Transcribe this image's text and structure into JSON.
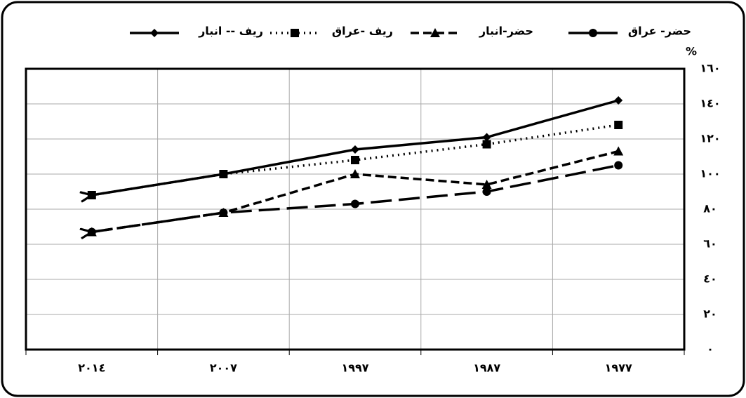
{
  "chart_data": {
    "type": "line",
    "y_label": "%",
    "categories": [
      "٢٠١٤",
      "٢٠٠٧",
      "١٩٩٧",
      "١٩٨٧",
      "١٩٧٧"
    ],
    "series": [
      {
        "name": "حضر- عراق",
        "color": "#000000",
        "marker": "circle",
        "dash": "long",
        "values": [
          67,
          78,
          83,
          90,
          105
        ]
      },
      {
        "name": "حضر-انبار",
        "color": "#000000",
        "marker": "triangle",
        "dash": "short",
        "values": [
          67,
          78,
          100,
          94,
          113
        ]
      },
      {
        "name": "ريف -عراق",
        "color": "#000000",
        "marker": "square",
        "dash": "dotted",
        "values": [
          88,
          100,
          108,
          117,
          128
        ]
      },
      {
        "name": "ريف -- انبار",
        "color": "#000000",
        "marker": "diamond",
        "dash": "solid",
        "values": [
          88,
          100,
          114,
          121,
          142
        ]
      }
    ],
    "ylim": [
      0,
      160
    ],
    "yticks": [
      {
        "value": 0,
        "label": "٠"
      },
      {
        "value": 20,
        "label": "٢٠"
      },
      {
        "value": 40,
        "label": "٤٠"
      },
      {
        "value": 60,
        "label": "٦٠"
      },
      {
        "value": 80,
        "label": "٨٠"
      },
      {
        "value": 100,
        "label": "١٠٠"
      },
      {
        "value": 120,
        "label": "١٢٠"
      },
      {
        "value": 140,
        "label": "١٤٠"
      },
      {
        "value": 160,
        "label": "١٦٠"
      }
    ],
    "grid": true,
    "legend": "top"
  }
}
